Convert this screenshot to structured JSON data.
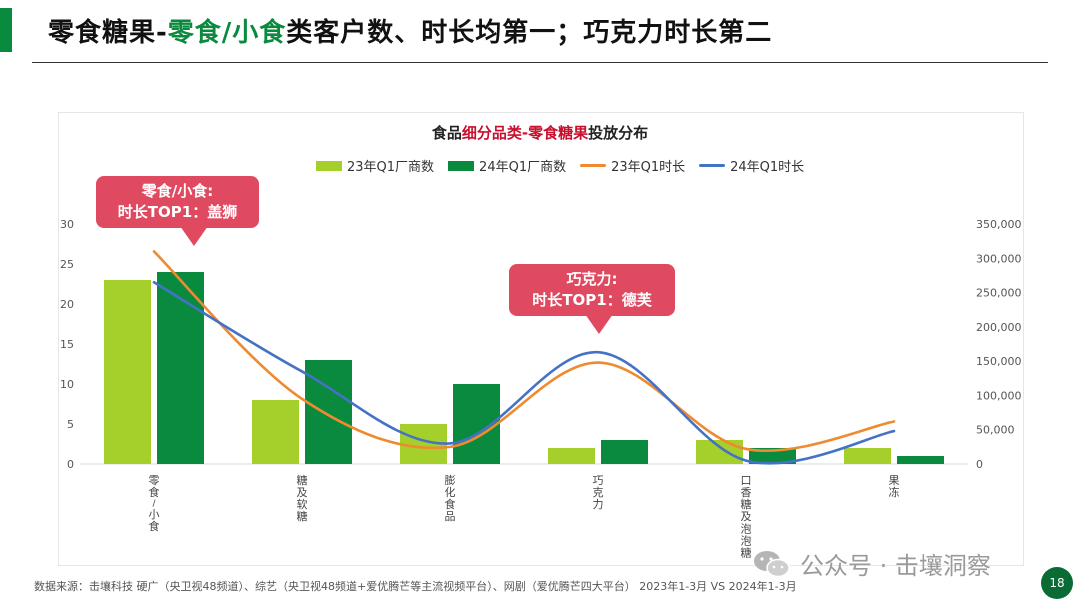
{
  "header": {
    "title_part1": "零食糖果-",
    "title_highlight": "零食/小食",
    "title_part2": "类客户数、时长均第一；巧克力时长第二"
  },
  "chart_data": {
    "type": "bar",
    "title_prefix": "食品",
    "title_highlight": "细分品类-零食糖果",
    "title_suffix": "投放分布",
    "categories": [
      "零食/小食",
      "糖及软糖",
      "膨化食品",
      "巧克力",
      "口香糖及泡泡糖",
      "果冻"
    ],
    "series": [
      {
        "name": "23年Q1厂商数",
        "kind": "bar",
        "axis": "left",
        "color": "#a5cf2a",
        "values": [
          23,
          8,
          5,
          2,
          3,
          2
        ]
      },
      {
        "name": "24年Q1厂商数",
        "kind": "bar",
        "axis": "left",
        "color": "#0a8a3e",
        "values": [
          24,
          13,
          10,
          3,
          2,
          1
        ]
      },
      {
        "name": "23年Q1时长",
        "kind": "line",
        "axis": "right",
        "color": "#ee8a30",
        "values": [
          310000,
          95000,
          25000,
          148000,
          22000,
          62000
        ]
      },
      {
        "name": "24年Q1时长",
        "kind": "line",
        "axis": "right",
        "color": "#4472c4",
        "values": [
          265000,
          135000,
          30000,
          163000,
          5000,
          48000
        ]
      }
    ],
    "left_axis": {
      "min": 0,
      "max": 30,
      "ticks": [
        "0",
        "5",
        "10",
        "15",
        "20",
        "25",
        "30"
      ]
    },
    "right_axis": {
      "min": 0,
      "max": 350000,
      "ticks": [
        "0",
        "50,000",
        "100,000",
        "150,000",
        "200,000",
        "250,000",
        "300,000",
        "350,000"
      ]
    },
    "legend_position": "top-center"
  },
  "callouts": [
    {
      "line1": "零食/小食:",
      "line2": "时长TOP1：盖狮"
    },
    {
      "line1": "巧克力:",
      "line2": "时长TOP1：德芙"
    }
  ],
  "footer": {
    "source": "数据来源：击壤科技 硬广（央卫视48频道）、综艺（央卫视48频道+爱优腾芒等主流视频平台）、网剧（爱优腾芒四大平台） 2023年1-3月 VS 2024年1-3月",
    "watermark": "公众号 · 击壤洞察",
    "page_number": "18"
  },
  "colors": {
    "accent": "#0a8a3e",
    "callout": "#e04a60",
    "title_red": "#c8102e"
  }
}
